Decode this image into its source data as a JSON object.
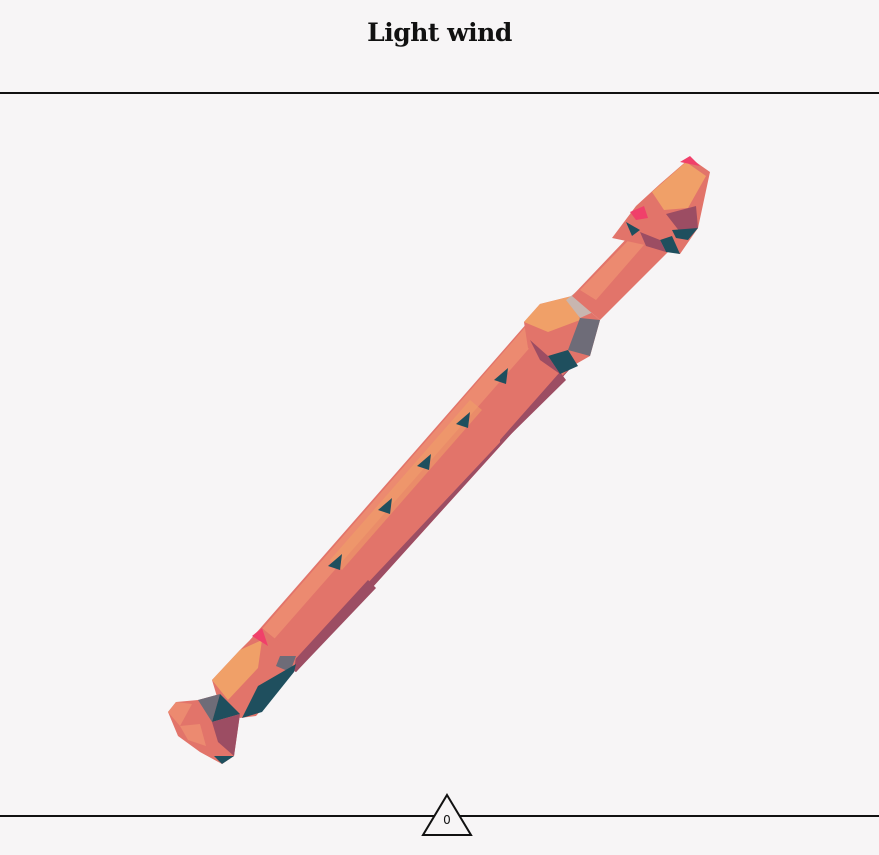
{
  "header": {
    "title": "Light wind"
  },
  "scene": {
    "object_icon": "recorder-flute-icon",
    "colors": {
      "background": "#f7f5f6",
      "body": "#e2746a",
      "body_light": "#ec8a70",
      "highlight": "#f0a068",
      "accent": "#f0406a",
      "shadow": "#9c4d63",
      "dark": "#1f4f5e",
      "grey": "#6e6c78",
      "pale": "#c8b6b0"
    }
  },
  "footer": {
    "counter_value": "0",
    "counter_icon": "triangle-icon"
  }
}
